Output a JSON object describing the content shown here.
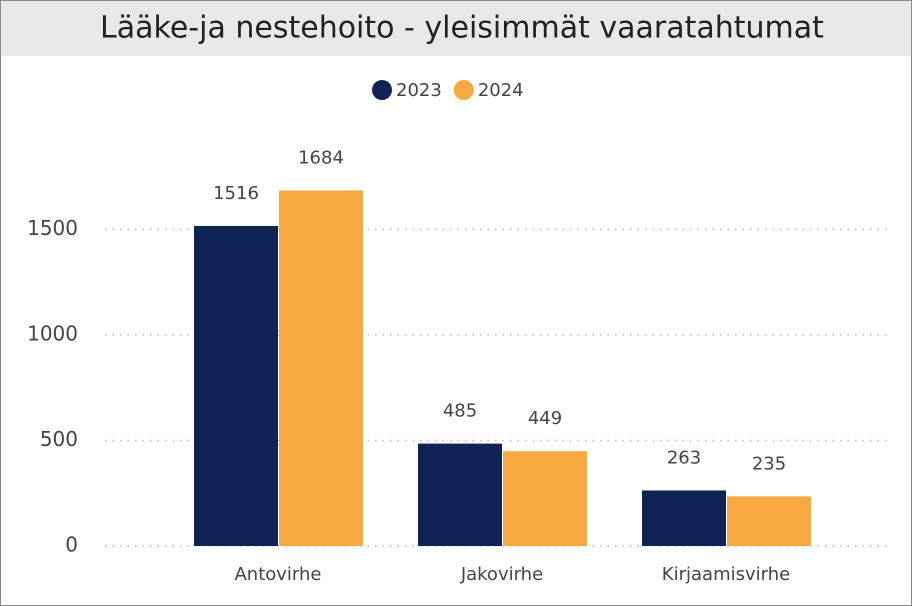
{
  "chart_data": {
    "type": "bar",
    "title": "Lääke-ja nestehoito - yleisimmät vaaratahtumat",
    "categories": [
      "Antovirhe",
      "Jakovirhe",
      "Kirjaamisvirhe"
    ],
    "series": [
      {
        "name": "2023",
        "color": "#0f2453",
        "values": [
          1516,
          485,
          263
        ]
      },
      {
        "name": "2024",
        "color": "#f5a93e",
        "values": [
          1684,
          449,
          235
        ]
      }
    ],
    "ylim": [
      0,
      1800
    ],
    "yticks": [
      0,
      500,
      1000,
      1500
    ],
    "grid": true,
    "legend": "top"
  }
}
